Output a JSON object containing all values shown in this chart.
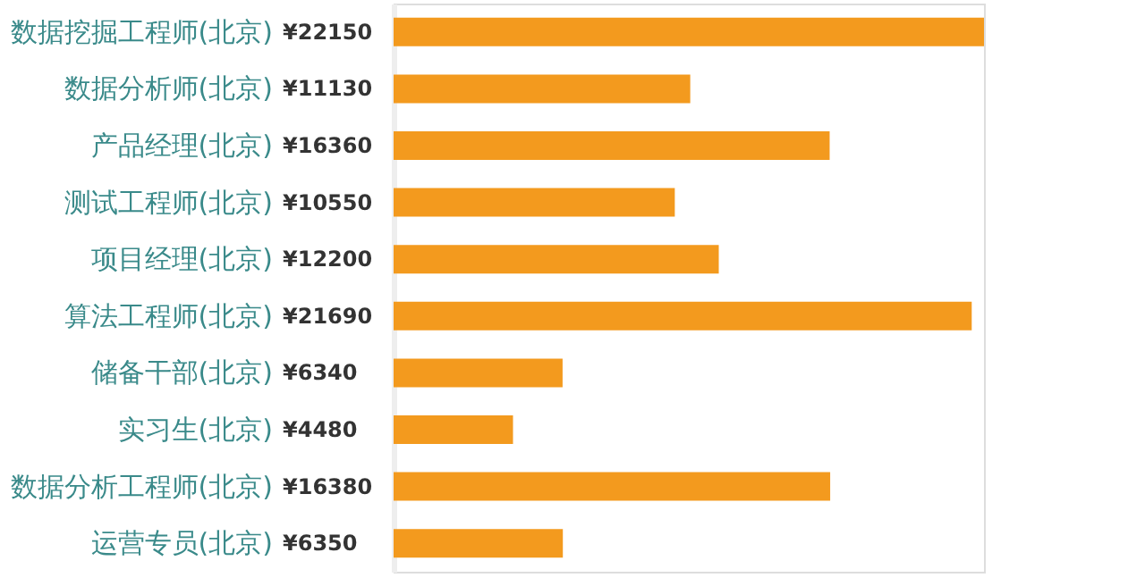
{
  "chart_data": {
    "type": "bar",
    "orientation": "horizontal",
    "categories": [
      "数据挖掘工程师(北京)",
      "数据分析师(北京)",
      "产品经理(北京)",
      "测试工程师(北京)",
      "项目经理(北京)",
      "算法工程师(北京)",
      "储备干部(北京)",
      "实习生(北京)",
      "数据分析工程师(北京)",
      "运营专员(北京)"
    ],
    "values": [
      22150,
      11130,
      16360,
      10550,
      12200,
      21690,
      6340,
      4480,
      16380,
      6350
    ],
    "value_labels": [
      "¥22150",
      "¥11130",
      "¥16360",
      "¥10550",
      "¥12200",
      "¥21690",
      "¥6340",
      "¥4480",
      "¥16380",
      "¥6350"
    ],
    "color": "#f39a1e"
  }
}
